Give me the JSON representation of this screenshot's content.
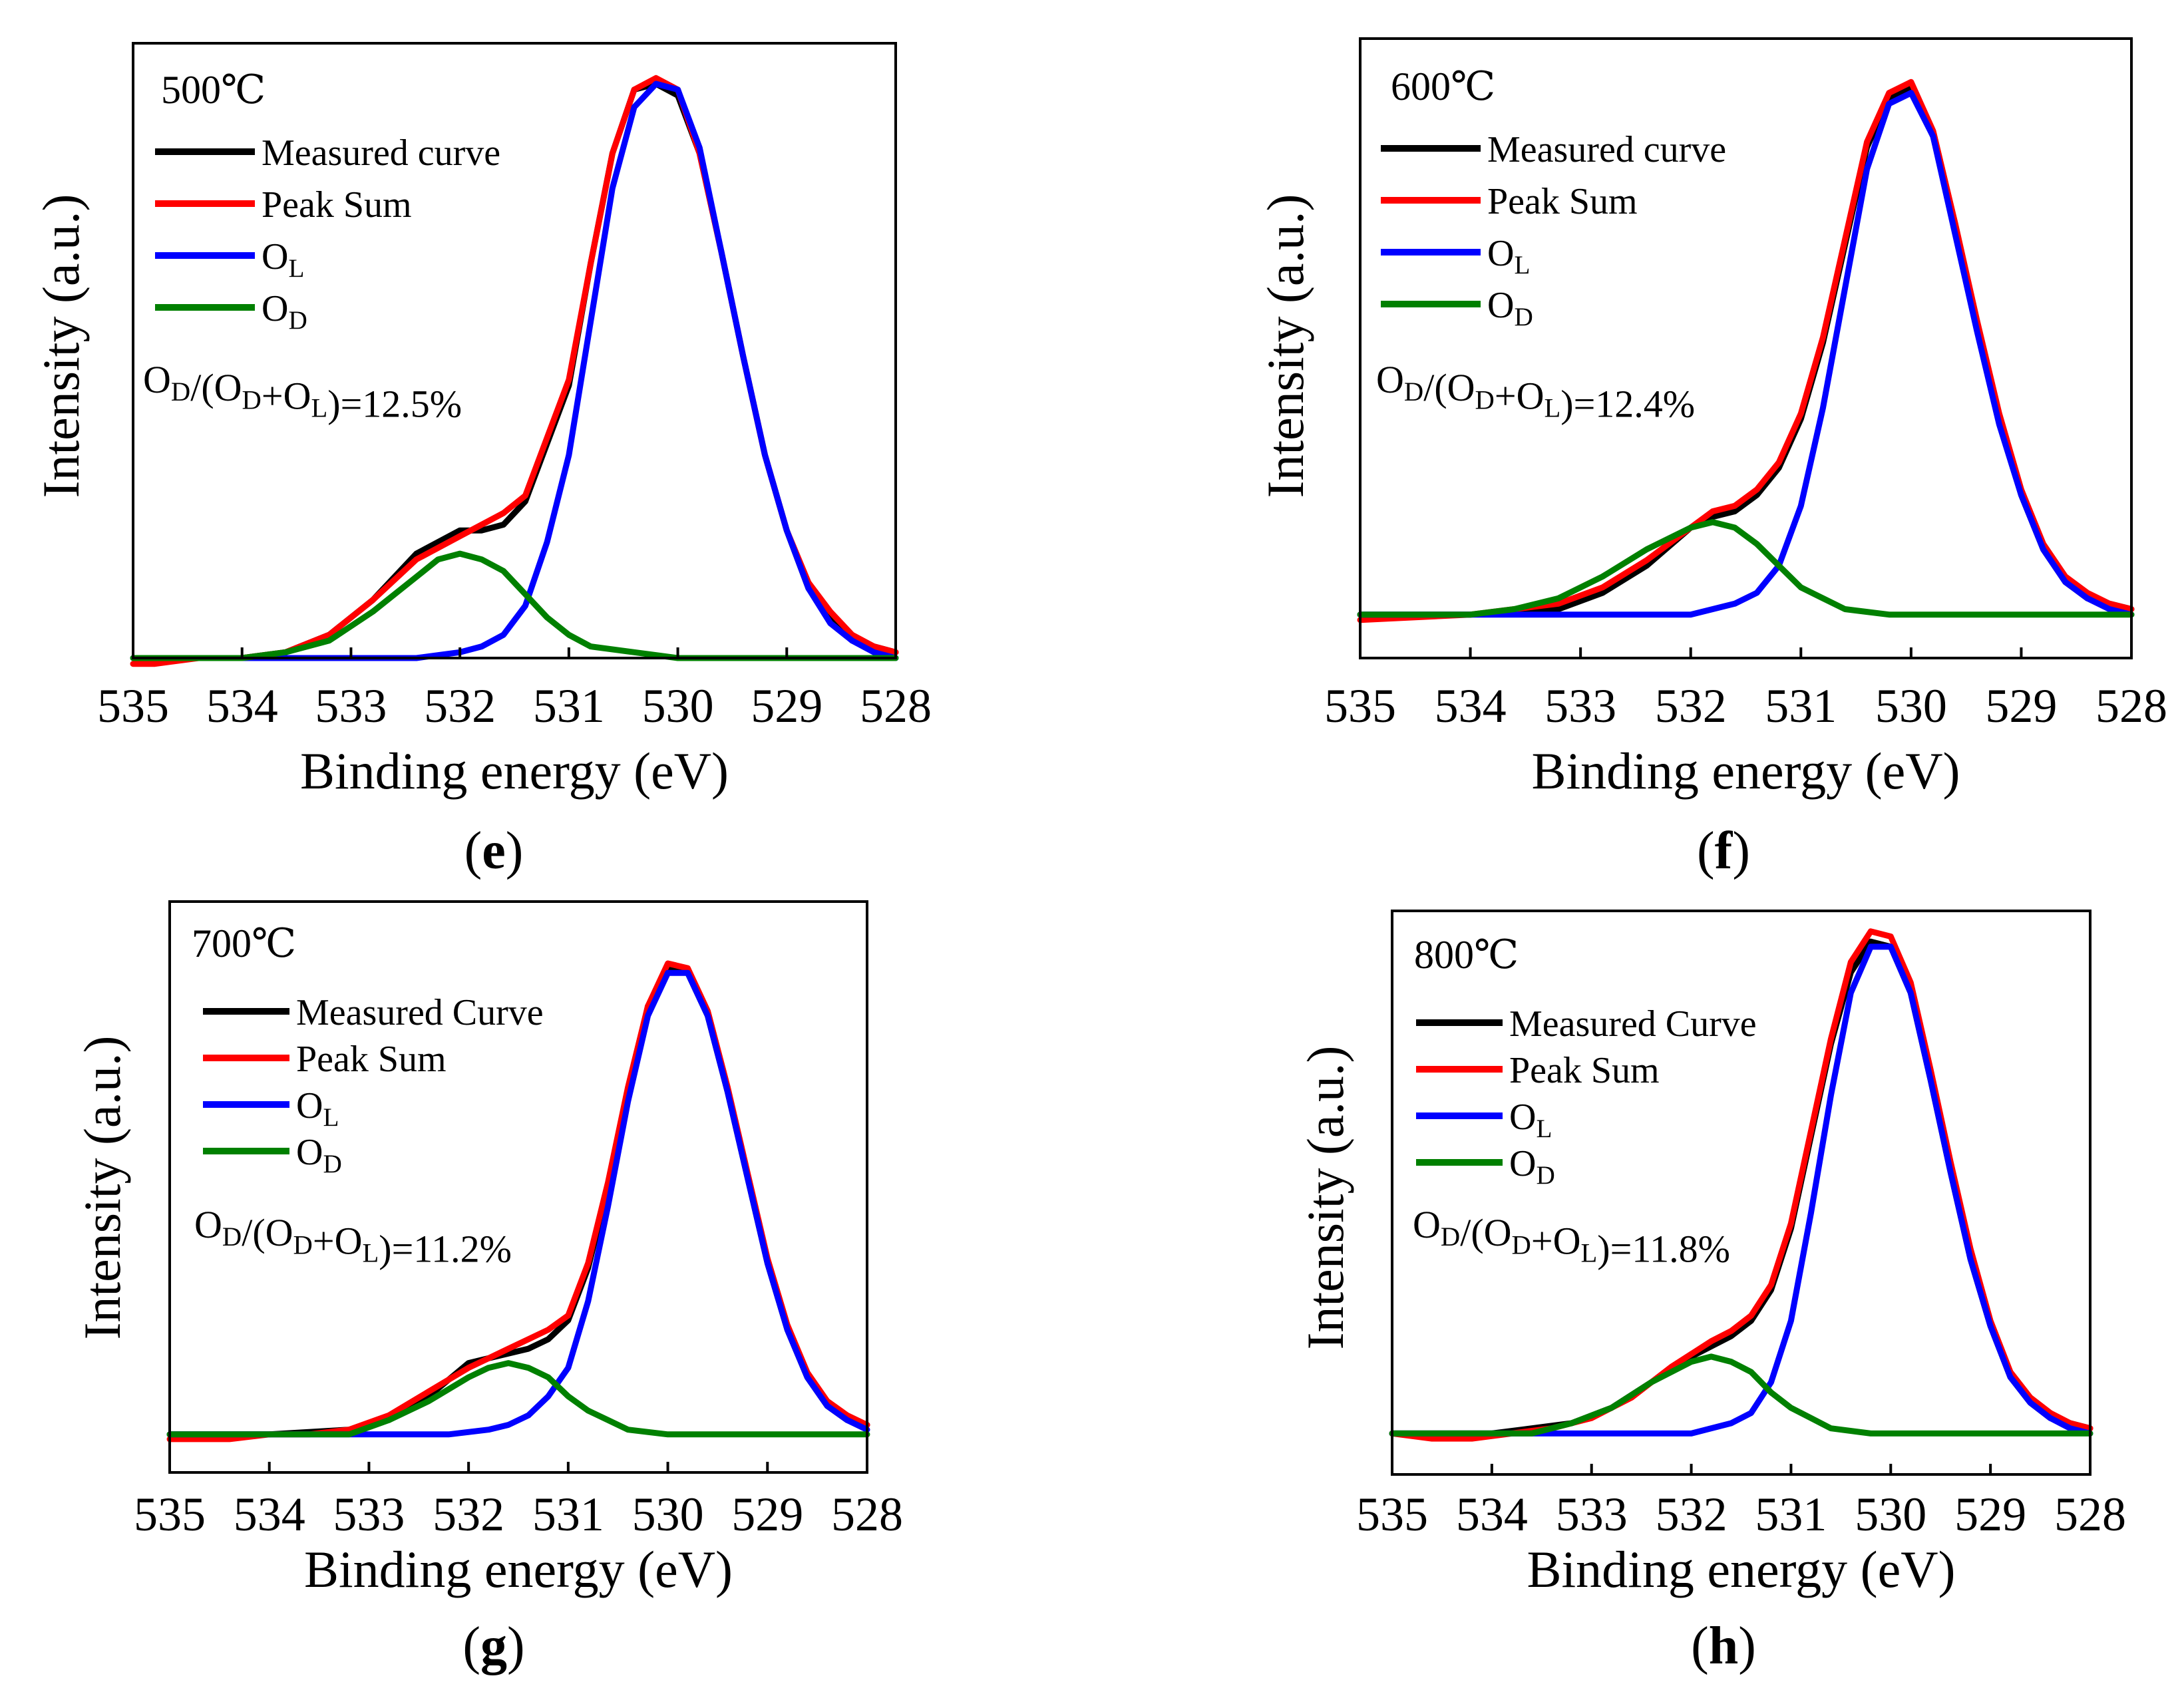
{
  "chart_data": [
    {
      "type": "line",
      "panel": "e",
      "temperature": "500℃",
      "title": "",
      "xlabel": "Binding energy (eV)",
      "ylabel": "Intensity (a.u.)",
      "xlim": [
        535,
        528
      ],
      "x_reversed": true,
      "ylim": [
        0,
        1.06
      ],
      "x_ticks": [
        "535",
        "534",
        "533",
        "532",
        "531",
        "530",
        "529",
        "528"
      ],
      "legend": [
        "Measured curve",
        "Peak Sum",
        "OL",
        "OD"
      ],
      "legend_position": "top-left",
      "ratio_text": "OD/(OD+OL)=12.5%",
      "ratio": "12.5%",
      "series": [
        {
          "name": "Measured curve",
          "color": "#000000",
          "x": [
            534.8,
            534.4,
            534.0,
            533.6,
            533.2,
            532.8,
            532.4,
            532.0,
            531.8,
            531.6,
            531.4,
            531.2,
            531.0,
            530.8,
            530.6,
            530.4,
            530.2,
            530.0,
            529.8,
            529.6,
            529.4,
            529.2,
            529.0,
            528.8,
            528.6,
            528.4,
            528.2,
            528.0
          ],
          "y": [
            0.0,
            0.0,
            0.0,
            0.01,
            0.04,
            0.1,
            0.18,
            0.22,
            0.22,
            0.23,
            0.27,
            0.37,
            0.47,
            0.68,
            0.87,
            0.98,
            0.99,
            0.97,
            0.87,
            0.7,
            0.52,
            0.35,
            0.22,
            0.12,
            0.07,
            0.03,
            0.02,
            0.01
          ]
        },
        {
          "name": "Peak Sum",
          "color": "#ff0000",
          "x": [
            535.0,
            534.8,
            534.4,
            534.0,
            533.6,
            533.2,
            532.8,
            532.4,
            532.0,
            531.8,
            531.6,
            531.4,
            531.2,
            531.0,
            530.8,
            530.6,
            530.4,
            530.2,
            530.0,
            529.8,
            529.6,
            529.4,
            529.2,
            529.0,
            528.8,
            528.6,
            528.4,
            528.2,
            528.0
          ],
          "y": [
            -0.01,
            -0.01,
            0.0,
            0.0,
            0.01,
            0.04,
            0.1,
            0.17,
            0.21,
            0.23,
            0.25,
            0.28,
            0.38,
            0.48,
            0.68,
            0.87,
            0.98,
            1.0,
            0.98,
            0.87,
            0.7,
            0.52,
            0.35,
            0.22,
            0.13,
            0.08,
            0.04,
            0.02,
            0.01
          ]
        },
        {
          "name": "OL",
          "color": "#0000ff",
          "x": [
            535.0,
            534.0,
            533.0,
            532.4,
            532.0,
            531.8,
            531.6,
            531.4,
            531.2,
            531.0,
            530.8,
            530.6,
            530.4,
            530.2,
            530.0,
            529.8,
            529.6,
            529.4,
            529.2,
            529.0,
            528.8,
            528.6,
            528.4,
            528.2,
            528.0
          ],
          "y": [
            0.0,
            0.0,
            0.0,
            0.0,
            0.01,
            0.02,
            0.04,
            0.09,
            0.2,
            0.35,
            0.58,
            0.81,
            0.95,
            0.99,
            0.98,
            0.88,
            0.7,
            0.52,
            0.35,
            0.22,
            0.12,
            0.06,
            0.03,
            0.01,
            0.0
          ]
        },
        {
          "name": "OD",
          "color": "#008000",
          "x": [
            535.0,
            534.0,
            533.6,
            533.2,
            532.8,
            532.4,
            532.2,
            532.0,
            531.8,
            531.6,
            531.4,
            531.2,
            531.0,
            530.8,
            530.4,
            530.0,
            529.0,
            528.0
          ],
          "y": [
            0.0,
            0.0,
            0.01,
            0.03,
            0.08,
            0.14,
            0.17,
            0.18,
            0.17,
            0.15,
            0.11,
            0.07,
            0.04,
            0.02,
            0.01,
            0.0,
            0.0,
            0.0
          ]
        }
      ]
    },
    {
      "type": "line",
      "panel": "f",
      "temperature": "600℃",
      "title": "",
      "xlabel": "Binding energy (eV)",
      "ylabel": "Intensity (a.u.)",
      "xlim": [
        535,
        528
      ],
      "x_reversed": true,
      "ylim": [
        -0.08,
        1.06
      ],
      "x_ticks": [
        "535",
        "534",
        "533",
        "532",
        "531",
        "530",
        "529",
        "528"
      ],
      "legend": [
        "Measured curve",
        "Peak Sum",
        "OL",
        "OD"
      ],
      "legend_position": "top-left",
      "ratio_text": "OD/(OD+OL)=12.4%",
      "ratio": "12.4%",
      "series": [
        {
          "name": "Measured curve",
          "color": "#000000",
          "x": [
            535.0,
            534.0,
            533.2,
            532.8,
            532.4,
            532.0,
            531.8,
            531.6,
            531.4,
            531.2,
            531.0,
            530.8,
            530.6,
            530.4,
            530.2,
            530.0,
            529.8,
            529.6,
            529.4,
            529.2,
            529.0,
            528.8,
            528.6,
            528.4,
            528.2,
            528.0
          ],
          "y": [
            0.0,
            0.0,
            0.01,
            0.04,
            0.09,
            0.16,
            0.18,
            0.19,
            0.22,
            0.27,
            0.36,
            0.5,
            0.68,
            0.86,
            0.95,
            0.97,
            0.88,
            0.71,
            0.53,
            0.36,
            0.22,
            0.12,
            0.06,
            0.03,
            0.02,
            0.01
          ]
        },
        {
          "name": "Peak Sum",
          "color": "#ff0000",
          "x": [
            535.0,
            534.0,
            533.6,
            533.2,
            532.8,
            532.4,
            532.0,
            531.8,
            531.6,
            531.4,
            531.2,
            531.0,
            530.8,
            530.6,
            530.4,
            530.2,
            530.0,
            529.8,
            529.6,
            529.4,
            529.2,
            529.0,
            528.8,
            528.6,
            528.4,
            528.2,
            528.0
          ],
          "y": [
            -0.01,
            0.0,
            0.01,
            0.02,
            0.05,
            0.1,
            0.16,
            0.19,
            0.2,
            0.23,
            0.28,
            0.37,
            0.51,
            0.69,
            0.87,
            0.96,
            0.98,
            0.89,
            0.72,
            0.54,
            0.37,
            0.23,
            0.13,
            0.07,
            0.04,
            0.02,
            0.01
          ]
        },
        {
          "name": "OL",
          "color": "#0000ff",
          "x": [
            535.0,
            532.0,
            531.6,
            531.4,
            531.2,
            531.0,
            530.8,
            530.6,
            530.4,
            530.2,
            530.0,
            529.8,
            529.6,
            529.4,
            529.2,
            529.0,
            528.8,
            528.6,
            528.4,
            528.2,
            528.0
          ],
          "y": [
            0.0,
            0.0,
            0.02,
            0.04,
            0.09,
            0.2,
            0.38,
            0.6,
            0.82,
            0.94,
            0.96,
            0.88,
            0.7,
            0.52,
            0.35,
            0.22,
            0.12,
            0.06,
            0.03,
            0.01,
            0.0
          ]
        },
        {
          "name": "OD",
          "color": "#008000",
          "x": [
            535.0,
            534.0,
            533.6,
            533.2,
            532.8,
            532.4,
            532.0,
            531.8,
            531.6,
            531.4,
            531.2,
            531.0,
            530.8,
            530.6,
            530.2,
            529.8,
            529.0,
            528.0
          ],
          "y": [
            0.0,
            0.0,
            0.01,
            0.03,
            0.07,
            0.12,
            0.16,
            0.17,
            0.16,
            0.13,
            0.09,
            0.05,
            0.03,
            0.01,
            0.0,
            0.0,
            0.0,
            0.0
          ]
        }
      ]
    },
    {
      "type": "line",
      "panel": "g",
      "temperature": "700℃",
      "title": "",
      "xlabel": "Binding energy (eV)",
      "ylabel": "Intensity (a.u.)",
      "xlim": [
        535,
        528
      ],
      "x_reversed": true,
      "ylim": [
        -0.08,
        1.12
      ],
      "x_ticks": [
        "535",
        "534",
        "533",
        "532",
        "531",
        "530",
        "529",
        "528"
      ],
      "legend": [
        "Measured Curve",
        "Peak Sum",
        "OL",
        "OD"
      ],
      "legend_position": "top-left",
      "ratio_text": "OD/(OD+OL)=11.2%",
      "ratio": "11.2%",
      "series": [
        {
          "name": "Measured Curve",
          "color": "#000000",
          "x": [
            535.0,
            534.0,
            533.2,
            532.8,
            532.4,
            532.0,
            531.8,
            531.6,
            531.4,
            531.2,
            531.0,
            530.8,
            530.6,
            530.4,
            530.2,
            530.0,
            529.8,
            529.6,
            529.4,
            529.2,
            529.0,
            528.8,
            528.6,
            528.4,
            528.2,
            528.0
          ],
          "y": [
            0.0,
            0.0,
            0.01,
            0.03,
            0.08,
            0.15,
            0.16,
            0.17,
            0.18,
            0.2,
            0.24,
            0.35,
            0.52,
            0.72,
            0.9,
            0.98,
            0.97,
            0.88,
            0.72,
            0.54,
            0.36,
            0.22,
            0.12,
            0.06,
            0.03,
            0.02
          ]
        },
        {
          "name": "Peak Sum",
          "color": "#ff0000",
          "x": [
            535.0,
            534.8,
            534.4,
            534.0,
            533.6,
            533.2,
            532.8,
            532.4,
            532.0,
            531.8,
            531.6,
            531.4,
            531.2,
            531.0,
            530.8,
            530.6,
            530.4,
            530.2,
            530.0,
            529.8,
            529.6,
            529.4,
            529.2,
            529.0,
            528.8,
            528.6,
            528.4,
            528.2,
            528.0
          ],
          "y": [
            -0.01,
            -0.01,
            -0.01,
            0.0,
            0.0,
            0.01,
            0.04,
            0.09,
            0.14,
            0.16,
            0.18,
            0.2,
            0.22,
            0.25,
            0.36,
            0.53,
            0.73,
            0.9,
            0.99,
            0.98,
            0.89,
            0.73,
            0.55,
            0.37,
            0.23,
            0.13,
            0.07,
            0.04,
            0.02
          ]
        },
        {
          "name": "OL",
          "color": "#0000ff",
          "x": [
            535.0,
            532.2,
            531.8,
            531.6,
            531.4,
            531.2,
            531.0,
            530.8,
            530.6,
            530.4,
            530.2,
            530.0,
            529.8,
            529.6,
            529.4,
            529.2,
            529.0,
            528.8,
            528.6,
            528.4,
            528.2,
            528.0
          ],
          "y": [
            0.0,
            0.0,
            0.01,
            0.02,
            0.04,
            0.08,
            0.14,
            0.28,
            0.48,
            0.7,
            0.88,
            0.97,
            0.97,
            0.88,
            0.72,
            0.54,
            0.36,
            0.22,
            0.12,
            0.06,
            0.03,
            0.01
          ]
        },
        {
          "name": "OD",
          "color": "#008000",
          "x": [
            535.0,
            533.2,
            532.8,
            532.4,
            532.0,
            531.8,
            531.6,
            531.4,
            531.2,
            531.0,
            530.8,
            530.6,
            530.4,
            530.0,
            529.0,
            528.0
          ],
          "y": [
            0.0,
            0.0,
            0.03,
            0.07,
            0.12,
            0.14,
            0.15,
            0.14,
            0.12,
            0.08,
            0.05,
            0.03,
            0.01,
            0.0,
            0.0,
            0.0
          ]
        }
      ]
    },
    {
      "type": "line",
      "panel": "h",
      "temperature": "800℃",
      "title": "",
      "xlabel": "Binding energy (eV)",
      "ylabel": "Intensity (a.u.)",
      "xlim": [
        535,
        528
      ],
      "x_reversed": true,
      "ylim": [
        -0.08,
        1.02
      ],
      "x_ticks": [
        "535",
        "534",
        "533",
        "532",
        "531",
        "530",
        "529",
        "528"
      ],
      "legend": [
        "Measured Curve",
        "Peak Sum",
        "OL",
        "OD"
      ],
      "legend_position": "top-left",
      "ratio_text": "OD/(OD+OL)=11.8%",
      "ratio": "11.8%",
      "series": [
        {
          "name": "Measured Curve",
          "color": "#000000",
          "x": [
            535.0,
            534.0,
            533.2,
            532.8,
            532.4,
            532.0,
            531.8,
            531.6,
            531.4,
            531.2,
            531.0,
            530.8,
            530.6,
            530.4,
            530.2,
            530.0,
            529.8,
            529.6,
            529.4,
            529.2,
            529.0,
            528.8,
            528.6,
            528.4,
            528.2,
            528.0
          ],
          "y": [
            0.0,
            0.0,
            0.02,
            0.05,
            0.1,
            0.15,
            0.17,
            0.19,
            0.22,
            0.28,
            0.4,
            0.58,
            0.76,
            0.9,
            0.96,
            0.95,
            0.86,
            0.69,
            0.51,
            0.34,
            0.21,
            0.11,
            0.06,
            0.03,
            0.02,
            0.01
          ]
        },
        {
          "name": "Peak Sum",
          "color": "#ff0000",
          "x": [
            535.0,
            534.6,
            534.2,
            533.8,
            533.4,
            533.0,
            532.6,
            532.2,
            531.8,
            531.6,
            531.4,
            531.2,
            531.0,
            530.8,
            530.6,
            530.4,
            530.2,
            530.0,
            529.8,
            529.6,
            529.4,
            529.2,
            529.0,
            528.8,
            528.6,
            528.4,
            528.2,
            528.0
          ],
          "y": [
            0.0,
            -0.01,
            -0.01,
            0.0,
            0.01,
            0.03,
            0.07,
            0.13,
            0.18,
            0.2,
            0.23,
            0.29,
            0.41,
            0.59,
            0.77,
            0.92,
            0.98,
            0.97,
            0.88,
            0.71,
            0.53,
            0.36,
            0.22,
            0.12,
            0.07,
            0.04,
            0.02,
            0.01
          ]
        },
        {
          "name": "OL",
          "color": "#0000ff",
          "x": [
            535.0,
            532.0,
            531.6,
            531.4,
            531.2,
            531.0,
            530.8,
            530.6,
            530.4,
            530.2,
            530.0,
            529.8,
            529.6,
            529.4,
            529.2,
            529.0,
            528.8,
            528.6,
            528.4,
            528.2,
            528.0
          ],
          "y": [
            0.0,
            0.0,
            0.02,
            0.04,
            0.1,
            0.22,
            0.43,
            0.66,
            0.86,
            0.95,
            0.95,
            0.86,
            0.69,
            0.51,
            0.34,
            0.21,
            0.11,
            0.06,
            0.03,
            0.01,
            0.0
          ]
        },
        {
          "name": "OD",
          "color": "#008000",
          "x": [
            535.0,
            533.6,
            533.2,
            532.8,
            532.4,
            532.0,
            531.8,
            531.6,
            531.4,
            531.2,
            531.0,
            530.8,
            530.6,
            530.2,
            529.8,
            529.0,
            528.0
          ],
          "y": [
            0.0,
            0.0,
            0.02,
            0.05,
            0.1,
            0.14,
            0.15,
            0.14,
            0.12,
            0.08,
            0.05,
            0.03,
            0.01,
            0.0,
            0.0,
            0.0,
            0.0
          ]
        }
      ]
    }
  ]
}
